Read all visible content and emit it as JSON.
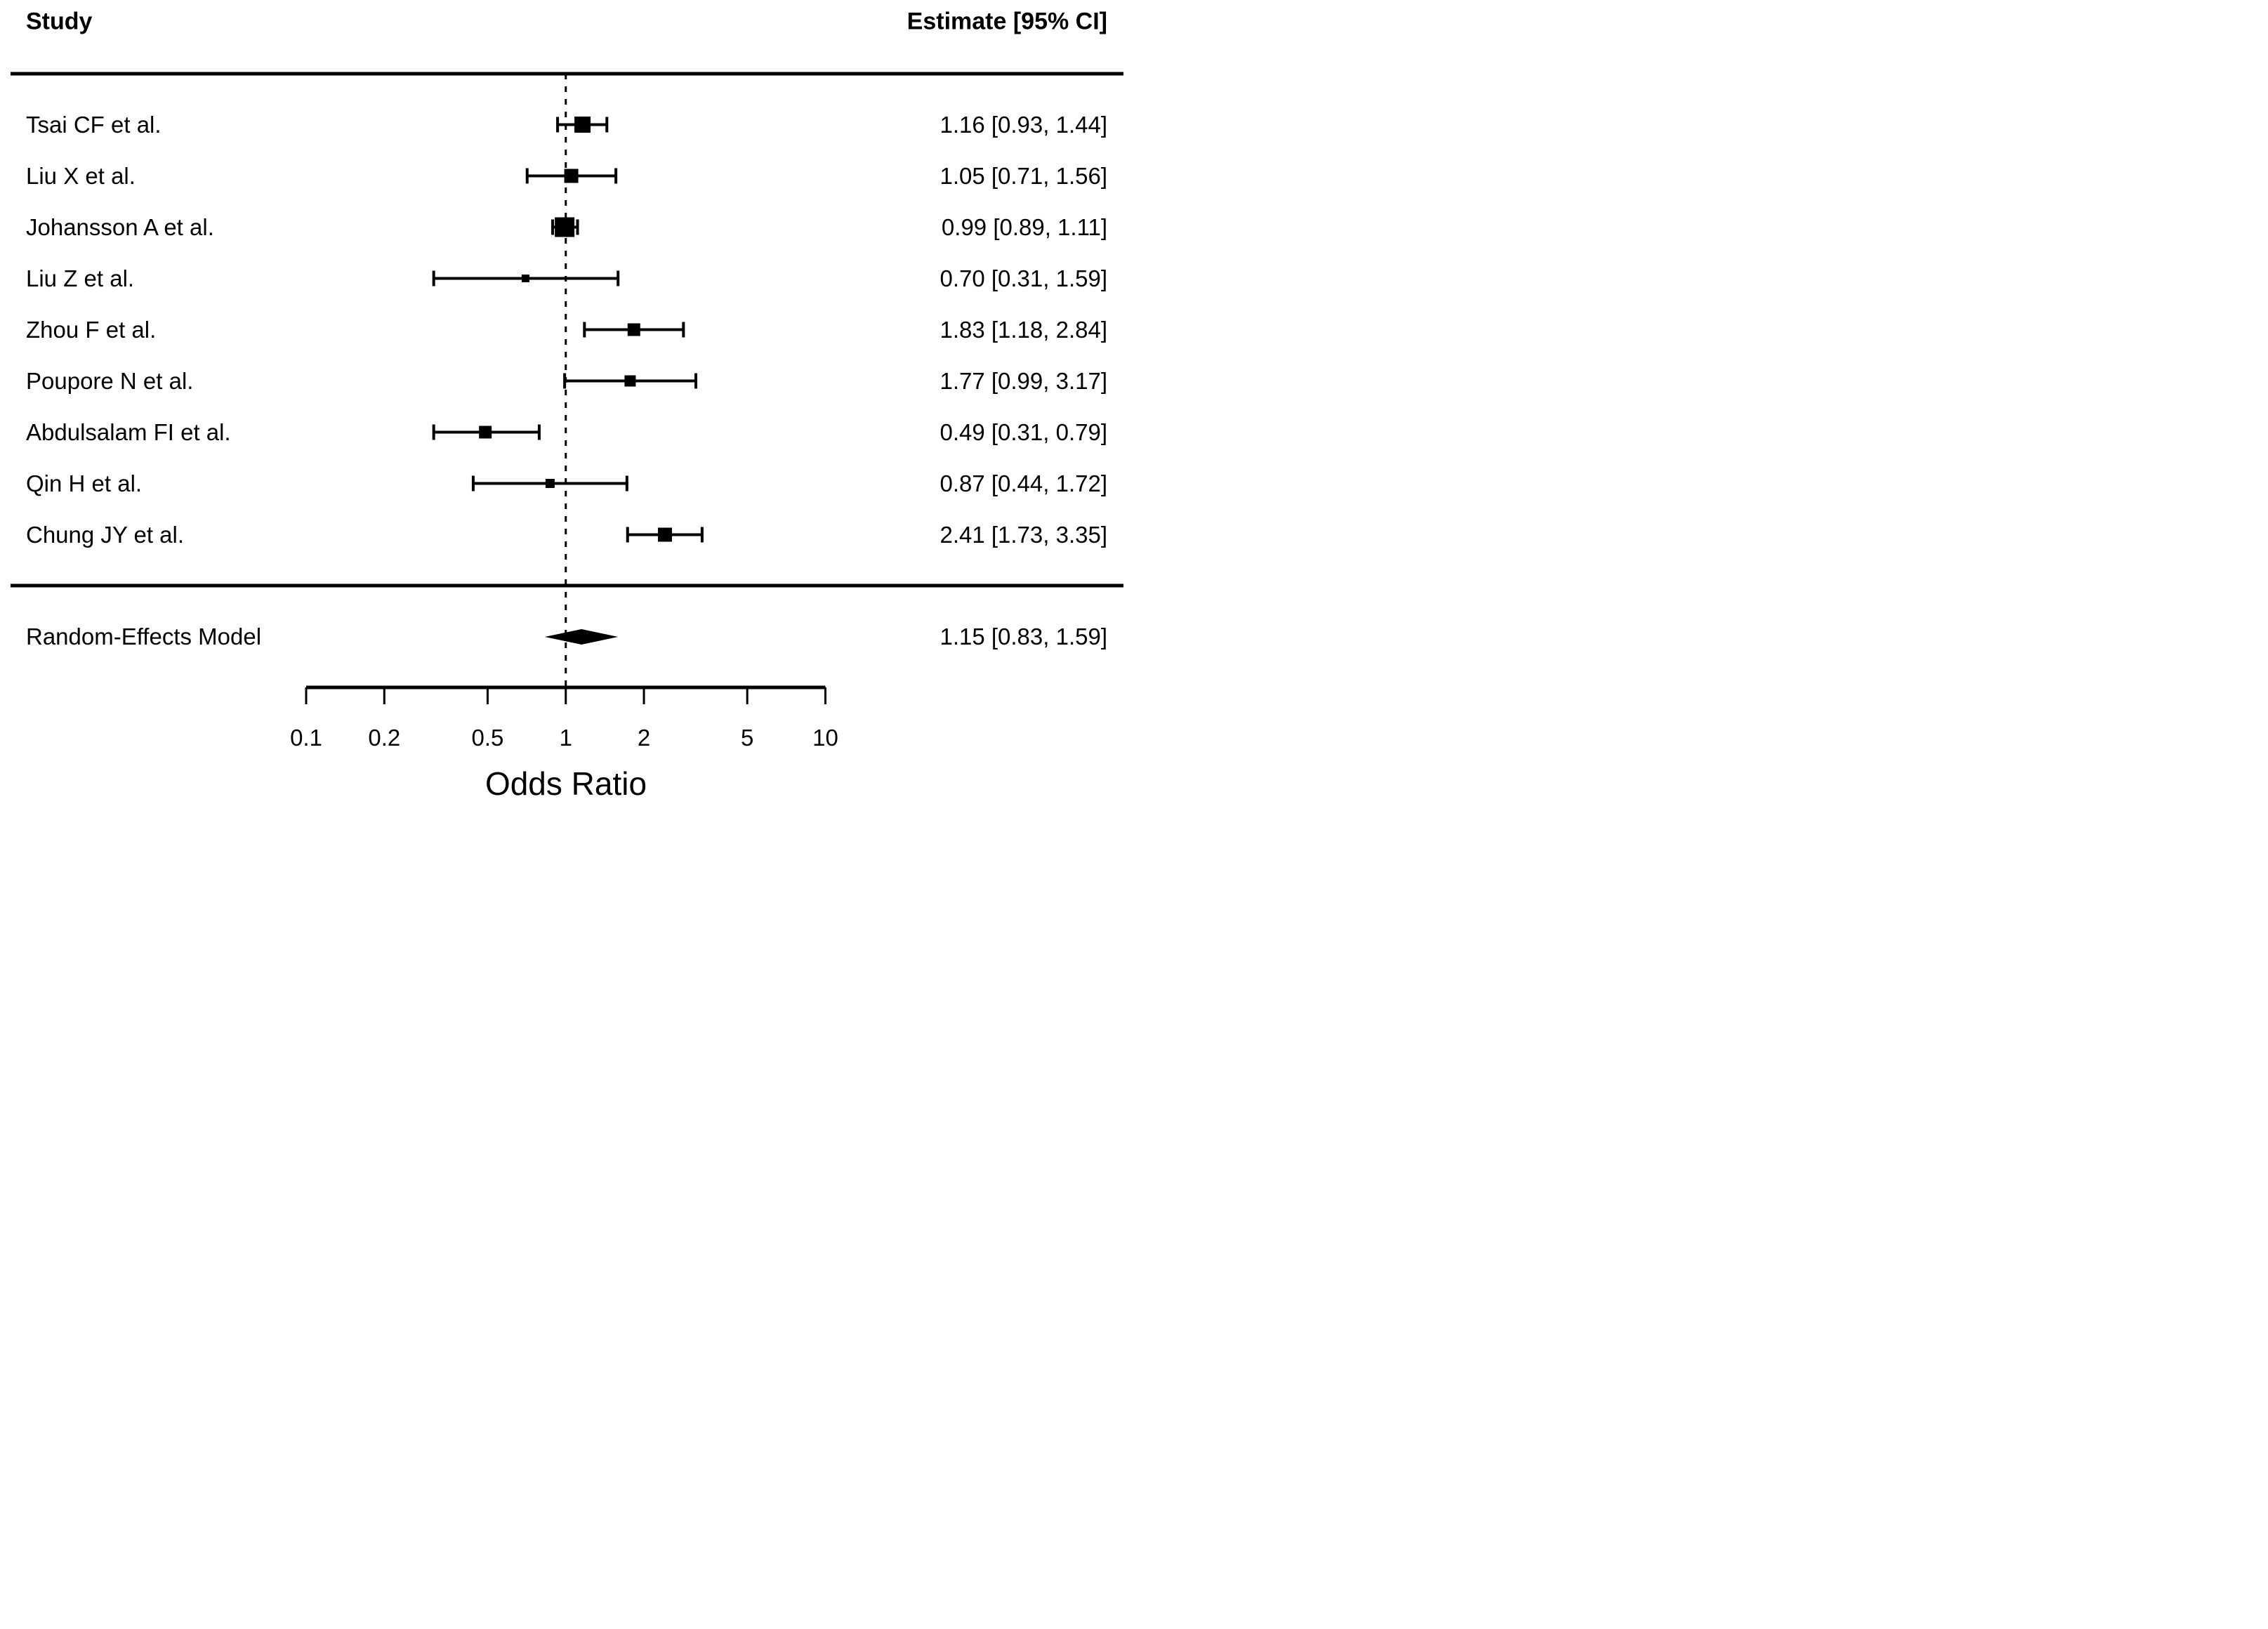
{
  "chart_data": {
    "type": "forest",
    "column_headers": {
      "study": "Study",
      "estimate": "Estimate [95% CI]"
    },
    "xlabel": "Odds Ratio",
    "x_scale": "log10",
    "x_range": [
      0.1,
      10
    ],
    "x_ticks": [
      "0.1",
      "0.2",
      "0.5",
      "1",
      "2",
      "5",
      "10"
    ],
    "x_tick_values": [
      0.1,
      0.2,
      0.5,
      1,
      2,
      5,
      10
    ],
    "reference_line": 1,
    "grid": false,
    "studies": [
      {
        "label": "Tsai CF et al.",
        "estimate": 1.16,
        "ci_low": 0.93,
        "ci_high": 1.44,
        "estimate_label": "1.16 [0.93, 1.44]",
        "weight_rel": 0.82
      },
      {
        "label": "Liu X et al.",
        "estimate": 1.05,
        "ci_low": 0.71,
        "ci_high": 1.56,
        "estimate_label": "1.05 [0.71, 1.56]",
        "weight_rel": 0.7
      },
      {
        "label": "Johansson A et al.",
        "estimate": 0.99,
        "ci_low": 0.89,
        "ci_high": 1.11,
        "estimate_label": "0.99 [0.89, 1.11]",
        "weight_rel": 1.0
      },
      {
        "label": "Liu Z et al.",
        "estimate": 0.7,
        "ci_low": 0.31,
        "ci_high": 1.59,
        "estimate_label": "0.70 [0.31, 1.59]",
        "weight_rel": 0.39
      },
      {
        "label": "Zhou F et al.",
        "estimate": 1.83,
        "ci_low": 1.18,
        "ci_high": 2.84,
        "estimate_label": "1.83 [1.18, 2.84]",
        "weight_rel": 0.64
      },
      {
        "label": "Poupore N et al.",
        "estimate": 1.77,
        "ci_low": 0.99,
        "ci_high": 3.17,
        "estimate_label": "1.77 [0.99, 3.17]",
        "weight_rel": 0.56
      },
      {
        "label": "Abdulsalam FI et al.",
        "estimate": 0.49,
        "ci_low": 0.31,
        "ci_high": 0.79,
        "estimate_label": "0.49 [0.31, 0.79]",
        "weight_rel": 0.64
      },
      {
        "label": "Qin H et al.",
        "estimate": 0.87,
        "ci_low": 0.44,
        "ci_high": 1.72,
        "estimate_label": "0.87 [0.44, 1.72]",
        "weight_rel": 0.46
      },
      {
        "label": "Chung JY et al.",
        "estimate": 2.41,
        "ci_low": 1.73,
        "ci_high": 3.35,
        "estimate_label": "2.41 [1.73, 3.35]",
        "weight_rel": 0.7
      }
    ],
    "summary": {
      "label": "Random-Effects Model",
      "estimate": 1.15,
      "ci_low": 0.83,
      "ci_high": 1.59,
      "estimate_label": "1.15 [0.83, 1.59]"
    }
  },
  "colors": {
    "ink": "#000000",
    "background": "#ffffff"
  }
}
